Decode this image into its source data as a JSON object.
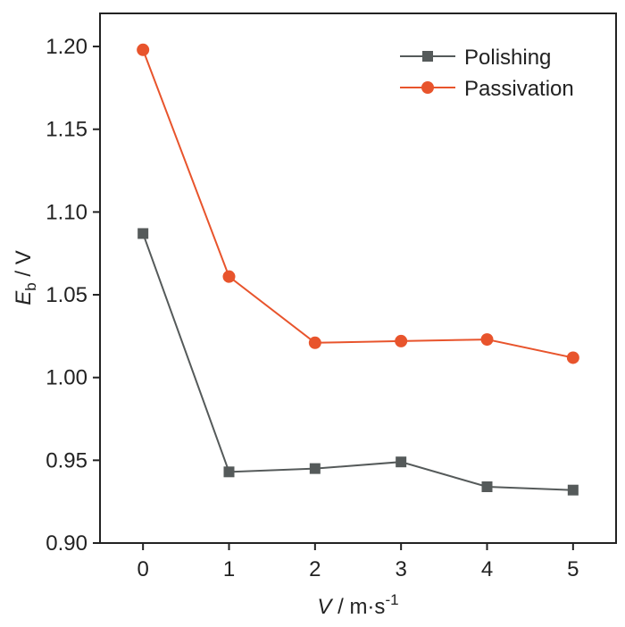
{
  "chart_data": {
    "type": "line",
    "x": [
      0,
      1,
      2,
      3,
      4,
      5
    ],
    "series": [
      {
        "name": "Polishing",
        "marker": "square",
        "color": "#555a5a",
        "values": [
          1.087,
          0.943,
          0.945,
          0.949,
          0.934,
          0.932
        ]
      },
      {
        "name": "Passivation",
        "marker": "circle",
        "color": "#e8542c",
        "values": [
          1.198,
          1.061,
          1.021,
          1.022,
          1.023,
          1.012
        ]
      }
    ],
    "xlabel": {
      "main": "V",
      "units": " / m·s",
      "sup": "-1"
    },
    "ylabel": {
      "main": "E",
      "sub": "b",
      "units": " / V"
    },
    "xlim": [
      -0.5,
      5.5
    ],
    "ylim": [
      0.9,
      1.22
    ],
    "xticks": [
      "0",
      "1",
      "2",
      "3",
      "4",
      "5"
    ],
    "yticks": [
      "0.90",
      "0.95",
      "1.00",
      "1.05",
      "1.10",
      "1.15",
      "1.20"
    ],
    "legend_position": "top-right",
    "grid": false
  }
}
